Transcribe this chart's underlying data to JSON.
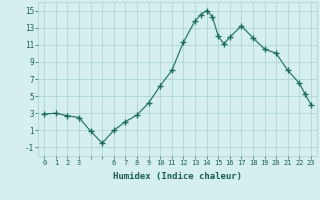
{
  "x": [
    0,
    1,
    2,
    3,
    4,
    5,
    6,
    7,
    8,
    9,
    10,
    11,
    12,
    13,
    13.5,
    14,
    14.5,
    15,
    15.5,
    16,
    17,
    18,
    19,
    20,
    21,
    22,
    22.5,
    23
  ],
  "y": [
    2.9,
    3.0,
    2.7,
    2.5,
    0.9,
    -0.5,
    1.0,
    2.0,
    2.8,
    4.2,
    6.2,
    8.0,
    11.3,
    13.8,
    14.5,
    15.0,
    14.3,
    12.0,
    11.1,
    11.9,
    13.2,
    11.8,
    10.5,
    10.0,
    8.0,
    6.5,
    5.2,
    4.0
  ],
  "line_color": "#1a6b5e",
  "marker_color": "#1a6b5e",
  "bg_color": "#d4efee",
  "grid_color": "#a8cece",
  "xlabel": "Humidex (Indice chaleur)",
  "ylim": [
    -2,
    16
  ],
  "xlim": [
    -0.5,
    23.5
  ],
  "yticks": [
    -1,
    1,
    3,
    5,
    7,
    9,
    11,
    13,
    15
  ],
  "xtick_labels": [
    "0",
    "1",
    "2",
    "3",
    "",
    "",
    "6",
    "7",
    "8",
    "9",
    "10",
    "11",
    "12",
    "13",
    "14",
    "15",
    "16",
    "17",
    "18",
    "19",
    "20",
    "21",
    "22",
    "23"
  ],
  "xtick_pos": [
    0,
    1,
    2,
    3,
    4,
    5,
    6,
    7,
    8,
    9,
    10,
    11,
    12,
    13,
    14,
    15,
    16,
    17,
    18,
    19,
    20,
    21,
    22,
    23
  ],
  "font_color": "#1a5c52"
}
